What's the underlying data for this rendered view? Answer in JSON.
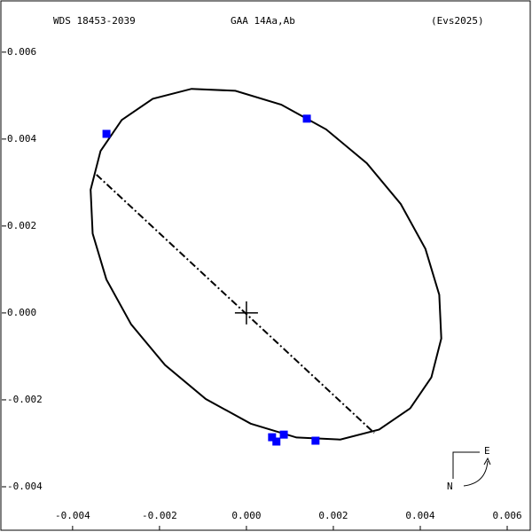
{
  "chart_data": {
    "type": "scatter",
    "title": "WDS 18453-2039",
    "subtitle": "GAA  14Aa,Ab",
    "reference": "(Evs2025)",
    "compass": {
      "east": "E",
      "north": "N"
    },
    "xlim": [
      -0.00567,
      0.00653
    ],
    "ylim": [
      -0.005,
      0.0072
    ],
    "xticks": [
      -0.004,
      -0.002,
      {
        "value": 0,
        "label": "0.000"
      },
      0.002,
      0.004,
      0.006
    ],
    "yticks": [
      -0.004,
      -0.002,
      {
        "value": 0,
        "label": "0.000"
      },
      0.002,
      0.004,
      0.006
    ],
    "series": [
      {
        "mode": "line",
        "color": "#000000",
        "x": [
          0.003767,
          0.004255,
          0.004483,
          0.004437,
          0.004119,
          0.003551,
          0.002771,
          0.001833,
          0.000801,
          -0.000255,
          -0.001263,
          -0.002155,
          -0.002869,
          -0.003357,
          -0.003585,
          -0.003539,
          -0.003221,
          -0.002653,
          -0.001873,
          -0.000935,
          9.7e-05,
          0.001153,
          0.002161,
          0.003053,
          0.003767
        ],
        "y": [
          -0.002196,
          -0.001482,
          -0.00059,
          0.000418,
          0.001474,
          0.002506,
          0.003444,
          0.004224,
          0.004792,
          0.00511,
          0.005156,
          0.004928,
          0.00444,
          0.003726,
          0.002834,
          0.001826,
          0.00077,
          -0.000262,
          -0.0012,
          -0.00198,
          -0.002548,
          -0.002866,
          -0.002912,
          -0.002684,
          -0.002196
        ]
      },
      {
        "mode": "dashdot",
        "color": "#000000",
        "x": [
          -0.00345,
          0.00294
        ],
        "y": [
          0.00318,
          -0.00276
        ]
      },
      {
        "mode": "cross",
        "color": "#000000",
        "x": [
          0
        ],
        "y": [
          0
        ]
      },
      {
        "mode": "markers",
        "color": "#0000ff",
        "x": [
          -0.00322,
          0.00139,
          0.00059,
          0.00069,
          0.00086,
          0.00159
        ],
        "y": [
          0.00412,
          0.00447,
          -0.00286,
          -0.00296,
          -0.0028,
          -0.00294
        ]
      }
    ]
  }
}
